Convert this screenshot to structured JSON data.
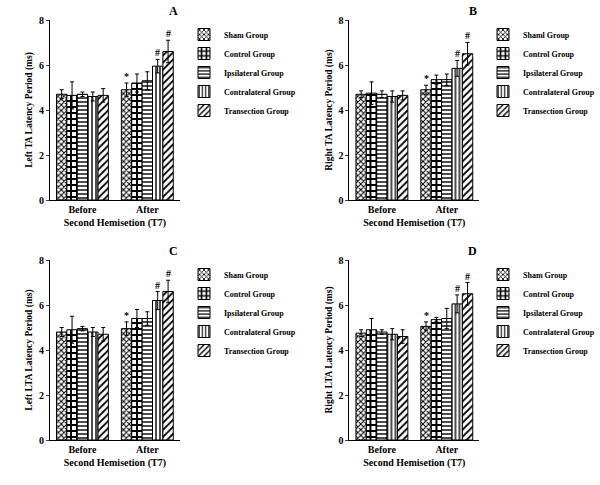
{
  "chart_data": [
    {
      "type": "bar",
      "title": "A",
      "x_label": "Second Hemisetion (T7)",
      "y_label": "Left TA Latency Period (ms)",
      "categories": [
        "Before",
        "After"
      ],
      "ylim": [
        0,
        8
      ],
      "yticks": [
        0,
        2,
        4,
        6,
        8
      ],
      "legend": "right",
      "series": [
        {
          "name": "Sham Group",
          "color": "#000000",
          "marker": "crosshatch",
          "values": [
            4.7,
            4.9
          ],
          "errors": [
            0.2,
            0.3
          ]
        },
        {
          "name": "Control Group",
          "color": "#000000",
          "marker": "checker",
          "values": [
            4.65,
            5.2
          ],
          "errors": [
            0.6,
            0.4
          ]
        },
        {
          "name": "Ipsilateral Group",
          "color": "#000000",
          "marker": "horizontal",
          "values": [
            4.7,
            5.3
          ],
          "errors": [
            0.1,
            0.4
          ]
        },
        {
          "name": "Contralateral Group",
          "color": "#000000",
          "marker": "vertical",
          "values": [
            4.6,
            5.95
          ],
          "errors": [
            0.2,
            0.3
          ]
        },
        {
          "name": "Transection Group",
          "color": "#000000",
          "marker": "diagonal",
          "values": [
            4.65,
            6.6
          ],
          "errors": [
            0.3,
            0.5
          ]
        }
      ],
      "annotations": [
        {
          "category": "After",
          "series": "Sham Group",
          "text": "*"
        },
        {
          "category": "After",
          "series": "Contralateral Group",
          "text": "#"
        },
        {
          "category": "After",
          "series": "Transection Group",
          "text": "#"
        }
      ]
    },
    {
      "type": "bar",
      "title": "B",
      "x_label": "Second Hemisetion (T7)",
      "y_label": "Right TA Latency Period (ms)",
      "categories": [
        "Before",
        "After"
      ],
      "ylim": [
        0,
        8
      ],
      "yticks": [
        0,
        2,
        4,
        6,
        8
      ],
      "legend": "right",
      "series": [
        {
          "name": "Shaml Group",
          "color": "#000000",
          "marker": "crosshatch",
          "values": [
            4.7,
            4.9
          ],
          "errors": [
            0.15,
            0.2
          ]
        },
        {
          "name": "Control Group",
          "color": "#000000",
          "marker": "checker",
          "values": [
            4.75,
            5.35
          ],
          "errors": [
            0.5,
            0.2
          ]
        },
        {
          "name": "Ipsilateral Group",
          "color": "#000000",
          "marker": "horizontal",
          "values": [
            4.7,
            5.35
          ],
          "errors": [
            0.15,
            0.25
          ]
        },
        {
          "name": "Contralateral Group",
          "color": "#000000",
          "marker": "vertical",
          "values": [
            4.6,
            5.85
          ],
          "errors": [
            0.25,
            0.35
          ]
        },
        {
          "name": "Transection Group",
          "color": "#000000",
          "marker": "diagonal",
          "values": [
            4.65,
            6.5
          ],
          "errors": [
            0.2,
            0.5
          ]
        }
      ],
      "annotations": [
        {
          "category": "After",
          "series": "Shaml Group",
          "text": "*"
        },
        {
          "category": "After",
          "series": "Contralateral Group",
          "text": "#"
        },
        {
          "category": "After",
          "series": "Transection Group",
          "text": "#"
        }
      ]
    },
    {
      "type": "bar",
      "title": "C",
      "x_label": "Second Hemisetion (T7)",
      "y_label": "Left LTA Latency Period (ms)",
      "categories": [
        "Before",
        "After"
      ],
      "ylim": [
        0,
        8
      ],
      "yticks": [
        0,
        2,
        4,
        6,
        8
      ],
      "legend": "right",
      "series": [
        {
          "name": "Sham Group",
          "color": "#000000",
          "marker": "crosshatch",
          "values": [
            4.8,
            4.95
          ],
          "errors": [
            0.2,
            0.3
          ]
        },
        {
          "name": "Control Group",
          "color": "#000000",
          "marker": "checker",
          "values": [
            4.9,
            5.4
          ],
          "errors": [
            0.6,
            0.4
          ]
        },
        {
          "name": "Ipsilateral Group",
          "color": "#000000",
          "marker": "horizontal",
          "values": [
            4.95,
            5.4
          ],
          "errors": [
            0.1,
            0.3
          ]
        },
        {
          "name": "Contralateral Group",
          "color": "#000000",
          "marker": "vertical",
          "values": [
            4.8,
            6.2
          ],
          "errors": [
            0.2,
            0.4
          ]
        },
        {
          "name": "Transection Group",
          "color": "#000000",
          "marker": "diagonal",
          "values": [
            4.7,
            6.6
          ],
          "errors": [
            0.3,
            0.5
          ]
        }
      ],
      "annotations": [
        {
          "category": "After",
          "series": "Sham Group",
          "text": "*"
        },
        {
          "category": "After",
          "series": "Contralateral Group",
          "text": "#"
        },
        {
          "category": "After",
          "series": "Transection Group",
          "text": "#"
        }
      ]
    },
    {
      "type": "bar",
      "title": "D",
      "x_label": "Second Hemisetion (T7)",
      "y_label": "Right LTA Latency Period (ms)",
      "categories": [
        "Before",
        "After"
      ],
      "ylim": [
        0,
        8
      ],
      "yticks": [
        0,
        2,
        4,
        6,
        8
      ],
      "legend": "right",
      "series": [
        {
          "name": "Sham Group",
          "color": "#000000",
          "marker": "crosshatch",
          "values": [
            4.75,
            5.05
          ],
          "errors": [
            0.15,
            0.2
          ]
        },
        {
          "name": "Control Group",
          "color": "#000000",
          "marker": "checker",
          "values": [
            4.9,
            5.35
          ],
          "errors": [
            0.5,
            0.1
          ]
        },
        {
          "name": "Ipsilateral Group",
          "color": "#000000",
          "marker": "horizontal",
          "values": [
            4.8,
            5.4
          ],
          "errors": [
            0.1,
            0.45
          ]
        },
        {
          "name": "Contralateral Group",
          "color": "#000000",
          "marker": "vertical",
          "values": [
            4.7,
            6.05
          ],
          "errors": [
            0.25,
            0.4
          ]
        },
        {
          "name": "Transection Group",
          "color": "#000000",
          "marker": "diagonal",
          "values": [
            4.6,
            6.5
          ],
          "errors": [
            0.3,
            0.5
          ]
        }
      ],
      "annotations": [
        {
          "category": "After",
          "series": "Sham Group",
          "text": "*"
        },
        {
          "category": "After",
          "series": "Contralateral Group",
          "text": "#"
        },
        {
          "category": "After",
          "series": "Transection Group",
          "text": "#"
        }
      ]
    }
  ]
}
